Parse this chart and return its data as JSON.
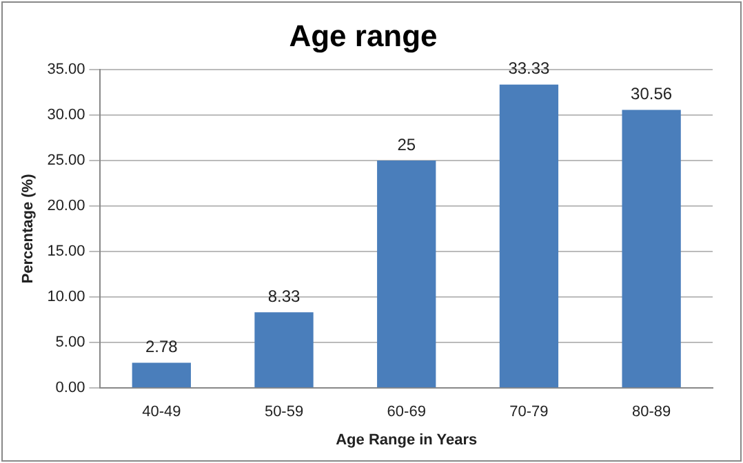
{
  "chart_data": {
    "type": "bar",
    "title": "Age range",
    "xlabel": "Age Range in Years",
    "ylabel": "Percentage (%)",
    "categories": [
      "40-49",
      "50-59",
      "60-69",
      "70-79",
      "80-89"
    ],
    "values": [
      2.78,
      8.33,
      25,
      33.33,
      30.56
    ],
    "color": "#4a7ebb",
    "ylim": [
      0,
      35
    ],
    "yticks": [
      {
        "value": 0,
        "label": "0.00"
      },
      {
        "value": 5,
        "label": "5.00"
      },
      {
        "value": 10,
        "label": "10.00"
      },
      {
        "value": 15,
        "label": "15.00"
      },
      {
        "value": 20,
        "label": "20.00"
      },
      {
        "value": 25,
        "label": "25.00"
      },
      {
        "value": 30,
        "label": "30.00"
      },
      {
        "value": 35,
        "label": "35.00"
      }
    ],
    "grid": "y",
    "data_labels": true
  }
}
